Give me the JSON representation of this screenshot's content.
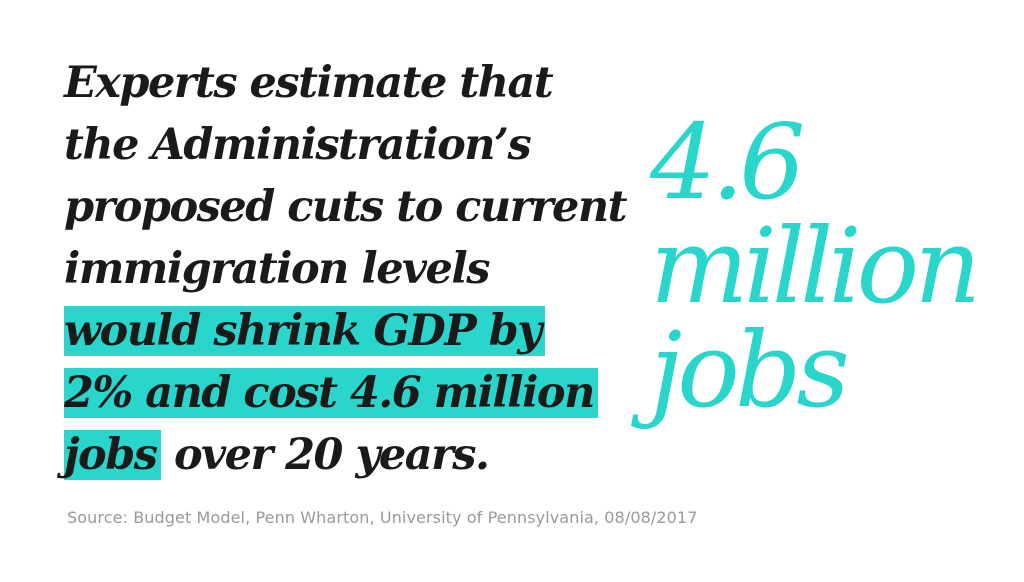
{
  "headline": {
    "lines": [
      "Experts estimate that",
      "the Administration’s",
      "proposed cuts to current",
      "immigration levels"
    ],
    "highlight_lines": [
      "would shrink GDP by",
      "2% and cost 4.6 million",
      "jobs"
    ],
    "tail": " over 20 years."
  },
  "big_stat": {
    "lines": [
      "4.6",
      "million",
      "jobs"
    ]
  },
  "source": "Source: Budget Model, Penn Wharton, University of Pennsylvania, 08/08/2017",
  "colors": {
    "accent": "#2ad6cc",
    "text": "#1a1a1a",
    "source_text": "#999999",
    "background": "#ffffff"
  }
}
